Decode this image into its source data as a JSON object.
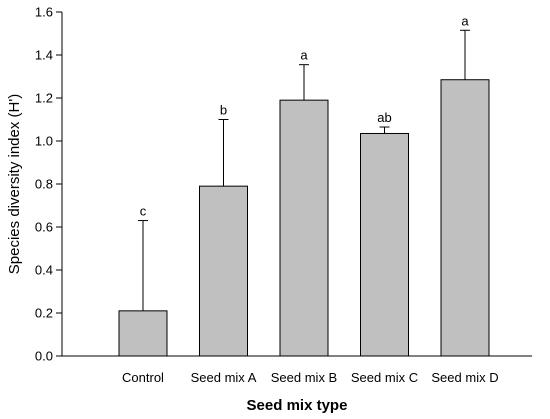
{
  "chart_data": {
    "type": "bar",
    "xlabel": "Seed mix type",
    "ylabel": "Species diversity index (H')",
    "ylim": [
      0,
      1.6
    ],
    "yticks": [
      "0.0",
      "0.2",
      "0.4",
      "0.6",
      "0.8",
      "1.0",
      "1.2",
      "1.4",
      "1.6"
    ],
    "categories": [
      "Control",
      "Seed mix A",
      "Seed mix B",
      "Seed mix C",
      "Seed mix D"
    ],
    "values": [
      0.21,
      0.79,
      1.19,
      1.035,
      1.285
    ],
    "error_upper": [
      0.42,
      0.31,
      0.165,
      0.03,
      0.23
    ],
    "letters": [
      "c",
      "b",
      "a",
      "ab",
      "a"
    ],
    "bar_color": "#c0c0c0",
    "grid": false,
    "legend": "none"
  }
}
